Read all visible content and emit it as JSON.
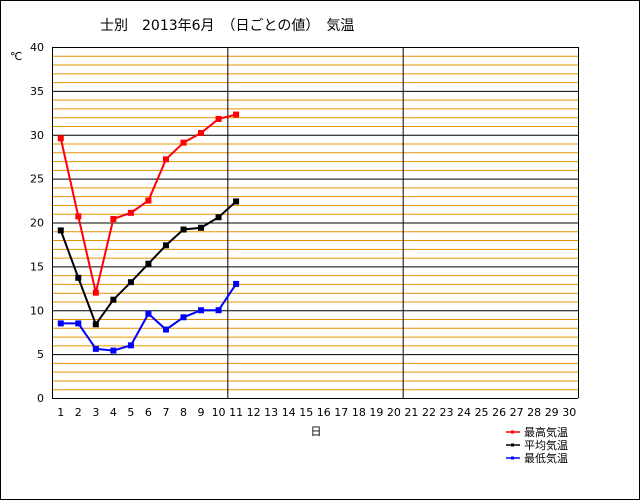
{
  "chart_data": {
    "type": "line",
    "title": "士別　2013年6月　（日ごとの値）　気温",
    "ylabel": "℃",
    "xlabel": "日",
    "x": [
      1,
      2,
      3,
      4,
      5,
      6,
      7,
      8,
      9,
      10,
      11
    ],
    "x_ticks": [
      1,
      2,
      3,
      4,
      5,
      6,
      7,
      8,
      9,
      10,
      11,
      12,
      13,
      14,
      15,
      16,
      17,
      18,
      19,
      20,
      21,
      22,
      23,
      24,
      25,
      26,
      27,
      28,
      29,
      30
    ],
    "y_ticks": [
      0,
      5,
      10,
      15,
      20,
      25,
      30,
      35,
      40
    ],
    "xlim": [
      1,
      30
    ],
    "ylim": [
      0,
      40
    ],
    "grid": true,
    "legend_position": "bottom-right",
    "series": [
      {
        "name": "最高気温",
        "color": "#ff0000",
        "values": [
          29.6,
          20.7,
          12.0,
          20.4,
          21.1,
          22.5,
          27.2,
          29.1,
          30.2,
          31.8,
          32.3
        ]
      },
      {
        "name": "平均気温",
        "color": "#000000",
        "values": [
          19.1,
          13.7,
          8.4,
          11.2,
          13.2,
          15.3,
          17.4,
          19.2,
          19.4,
          20.6,
          22.4
        ]
      },
      {
        "name": "最低気温",
        "color": "#0000ff",
        "values": [
          8.5,
          8.5,
          5.6,
          5.4,
          6.0,
          9.6,
          7.8,
          9.2,
          10.0,
          10.0,
          13.0
        ]
      }
    ]
  }
}
